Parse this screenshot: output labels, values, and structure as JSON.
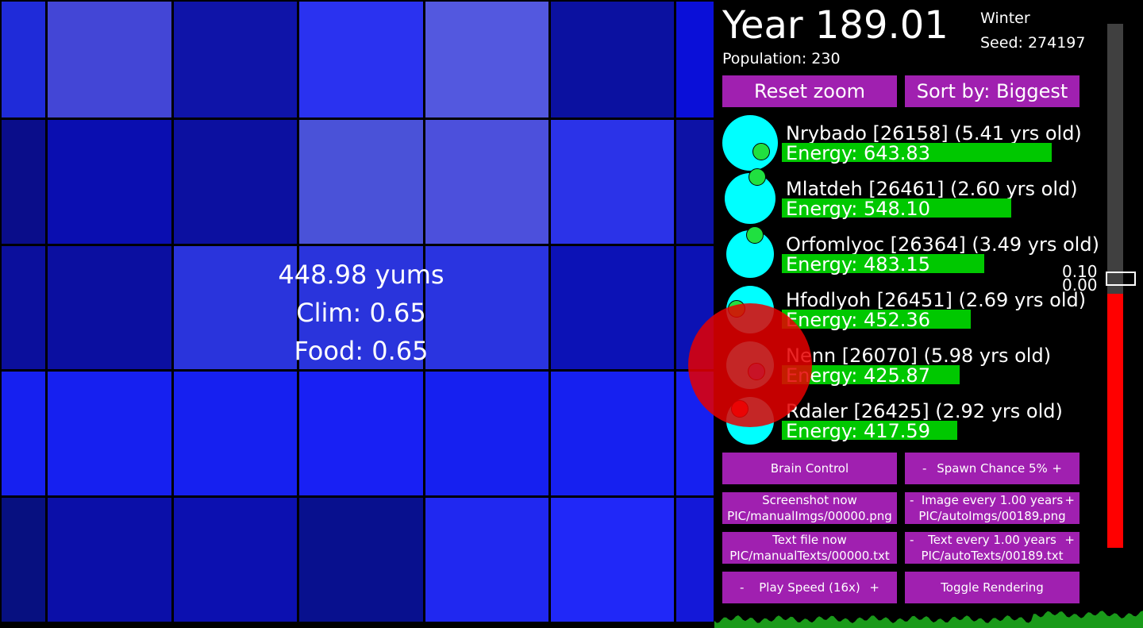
{
  "header": {
    "year": "Year 189.01",
    "season": "Winter",
    "seed": "Seed: 274197",
    "population": "Population: 230"
  },
  "buttons": {
    "reset_zoom": "Reset zoom",
    "sort_by": "Sort by: Biggest",
    "brain_control": "Brain Control",
    "spawn_chance": "Spawn Chance 5%",
    "screenshot_now": "Screenshot now",
    "screenshot_path": "PIC/manualImgs/00000.png",
    "image_every": "Image every 1.00 years",
    "image_path": "PIC/autoImgs/00189.png",
    "text_file_now": "Text file now",
    "text_file_path": "PIC/manualTexts/00000.txt",
    "text_every": "Text every 1.00 years",
    "text_path": "PIC/autoTexts/00189.txt",
    "play_speed": "Play Speed (16x)",
    "toggle_rendering": "Toggle Rendering",
    "minus": "-",
    "plus": "+"
  },
  "creatures": [
    {
      "name": "Nrybado [26158] (5.41 yrs old)",
      "energy": "Energy: 643.83",
      "energy_fraction": 1.0,
      "mouth_color": "#20e040",
      "body_size": "large"
    },
    {
      "name": "Mlatdeh [26461] (2.60 yrs old)",
      "energy": "Energy: 548.10",
      "energy_fraction": 0.85,
      "mouth_color": "#20e040",
      "body_size": "medium"
    },
    {
      "name": "Orfomlyoc [26364] (3.49 yrs old)",
      "energy": "Energy: 483.15",
      "energy_fraction": 0.75,
      "mouth_color": "#20e040",
      "body_size": "small"
    },
    {
      "name": "Hfodlyoh [26451] (2.69 yrs old)",
      "energy": "Energy: 452.36",
      "energy_fraction": 0.7,
      "mouth_color": "#20e040",
      "body_size": "small"
    },
    {
      "name": "Nenn [26070] (5.98 yrs old)",
      "energy": "Energy: 425.87",
      "energy_fraction": 0.66,
      "mouth_color": "#2080ff",
      "body_size": "small"
    },
    {
      "name": "Rdaler [26425] (2.92 yrs old)",
      "energy": "Energy: 417.59",
      "energy_fraction": 0.65,
      "mouth_color": "#ff2020",
      "body_size": "small"
    }
  ],
  "tile_info": {
    "yums": "448.98 yums",
    "clim": "Clim: 0.65",
    "food": "Food: 0.65"
  },
  "gauge": {
    "label_top": "0.10",
    "label_bottom": "0.00",
    "fill_fraction": 0.5
  },
  "colors": {
    "button": "#a020b0",
    "energy_bar": "#00c800",
    "creature_body": "#00ffff",
    "gauge_fill": "#ff0000",
    "graph": "#1a9a1a"
  }
}
